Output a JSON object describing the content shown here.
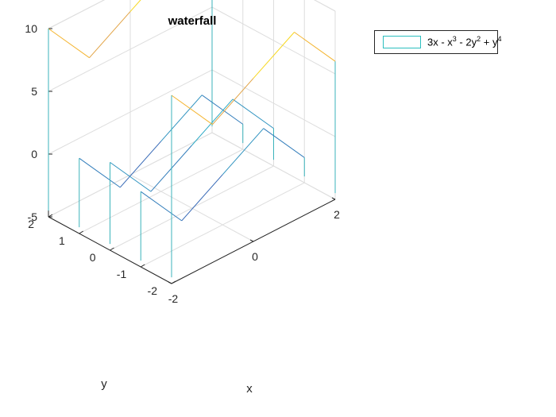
{
  "chart_data": {
    "type": "waterfall",
    "title": "waterfall",
    "xlabel": "x",
    "ylabel": "y",
    "zlabel": "",
    "xlim": [
      -2,
      2
    ],
    "ylim": [
      -2,
      2
    ],
    "zlim": [
      -5,
      10
    ],
    "xticks": [
      "-2",
      "0",
      "2"
    ],
    "yticks": [
      "-2",
      "-1",
      "0",
      "1",
      "2"
    ],
    "zticks": [
      "-5",
      "0",
      "5",
      "10"
    ],
    "grid": true,
    "legend_position": "top-right",
    "legend": {
      "parts": [
        {
          "text": "3x - x",
          "sup": "3"
        },
        {
          "text": " - 2y",
          "sup": "2"
        },
        {
          "text": " + y",
          "sup": "4"
        }
      ]
    },
    "x": [
      -2,
      -1,
      0,
      1,
      2
    ],
    "y": [
      -2,
      -1,
      0,
      1,
      2
    ],
    "series": [
      {
        "y": -2,
        "z": [
          10,
          6,
          8,
          10,
          6
        ]
      },
      {
        "y": -1,
        "z": [
          1,
          -3,
          -1,
          1,
          -3
        ]
      },
      {
        "y": 0,
        "z": [
          2,
          -2,
          0,
          2,
          -2
        ]
      },
      {
        "y": 1,
        "z": [
          1,
          -3,
          -1,
          1,
          -3
        ]
      },
      {
        "y": 2,
        "z": [
          10,
          6,
          8,
          10,
          6
        ]
      }
    ],
    "colors": {
      "low": "#3e26a8",
      "mid": "#2ab4c7",
      "high": "#f9fb0e",
      "midhigh": "#f3a33a",
      "grid": "#dedede",
      "axis": "#262626"
    }
  }
}
